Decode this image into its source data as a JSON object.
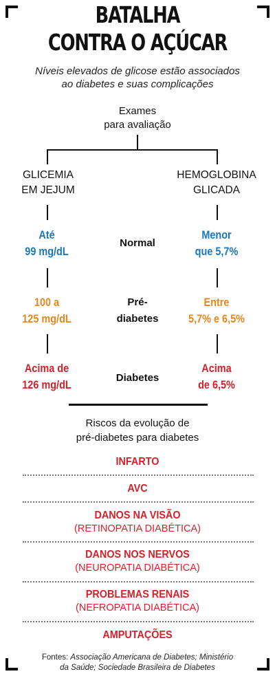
{
  "title": {
    "line1": "BATALHA",
    "line2": "CONTRA O AÇÚCAR"
  },
  "subtitle": {
    "line1": "Níveis elevados de glicose estão associados",
    "line2": "ao diabetes e suas complicações"
  },
  "exames": {
    "line1": "Exames",
    "line2": "para avaliação"
  },
  "columns": {
    "left": {
      "line1": "GLICEMIA",
      "line2": "EM JEJUM"
    },
    "right": {
      "line1": "HEMOGLOBINA",
      "line2": "GLICADA"
    }
  },
  "rows": [
    {
      "label_line1": "Normal",
      "label_line2": "",
      "left_line1": "Até",
      "left_line2": "99 mg/dL",
      "right_line1": "Menor",
      "right_line2": "que 5,7%",
      "color": "#1a78b8"
    },
    {
      "label_line1": "Pré-",
      "label_line2": "diabetes",
      "left_line1": "100 a",
      "left_line2": "125 mg/dL",
      "right_line1": "Entre",
      "right_line2": "5,7% e 6,5%",
      "color": "#e8871e"
    },
    {
      "label_line1": "Diabetes",
      "label_line2": "",
      "left_line1": "Acima de",
      "left_line2": "126 mg/dL",
      "right_line1": "Acima",
      "right_line2": "de 6,5%",
      "color": "#d8202a"
    }
  ],
  "riscos": {
    "title_line1": "Riscos da evolução de",
    "title_line2": "pré-diabetes para diabetes",
    "items": [
      {
        "main": "INFARTO",
        "sub": ""
      },
      {
        "main": "AVC",
        "sub": ""
      },
      {
        "main": "DANOS NA VISÃO",
        "sub": "(RETINOPATIA DIABÉTICA)"
      },
      {
        "main": "DANOS NOS NERVOS",
        "sub": "(NEUROPATIA DIABÉTICA)"
      },
      {
        "main": "PROBLEMAS RENAIS",
        "sub": "(NEFROPATIA DIABÉTICA)"
      },
      {
        "main": "AMPUTAÇÕES",
        "sub": ""
      }
    ]
  },
  "fontes": {
    "label": "Fontes:",
    "line1": "Associação Americana de Diabetes; Ministério",
    "line2": "da Saúde; Sociedade Brasileira de Diabetes"
  }
}
